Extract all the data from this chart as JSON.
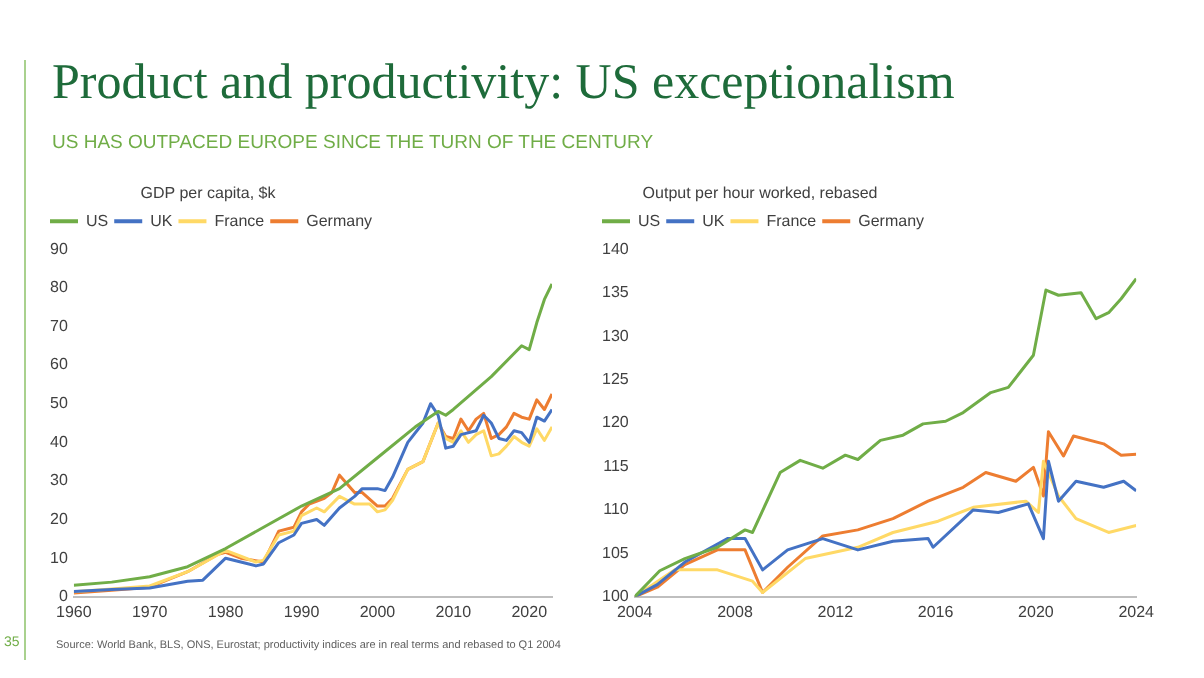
{
  "chart_data": [
    {
      "type": "line",
      "title": "Product and productivity: US exceptionalism",
      "subtitle": "US HAS OUTPACED EUROPE SINCE THE TURN OF THE CENTURY",
      "legend_title": "GDP per capita, $k",
      "legend": "top left",
      "grid": false,
      "marker": "none",
      "xlim": [
        1960,
        2023
      ],
      "xticks": [
        1960,
        1970,
        1980,
        1990,
        2000,
        2010,
        2020
      ],
      "ylim": [
        0,
        90
      ],
      "yticks": [
        0,
        10,
        20,
        30,
        40,
        50,
        60,
        70,
        80,
        90
      ],
      "annotations": [
        "Source: World Bank, BLS, ONS, Eurostat; productivity indices are in real terms and rebased to Q1 2004",
        "35"
      ],
      "series": [
        {
          "name": "US",
          "color": "#70ad47",
          "x": [
            1960,
            1965,
            1970,
            1975,
            1980,
            1985,
            1990,
            1995,
            2000,
            2005,
            2008,
            2009,
            2010,
            2015,
            2018,
            2019,
            2020,
            2021,
            2022,
            2023
          ],
          "values": [
            3,
            3.8,
            5.2,
            7.8,
            12.5,
            18,
            23.5,
            28,
            36,
            44,
            48,
            47,
            48.5,
            57,
            63,
            65,
            64,
            71,
            77,
            81
          ]
        },
        {
          "name": "UK",
          "color": "#4472c4",
          "x": [
            1960,
            1965,
            1970,
            1975,
            1977,
            1980,
            1982,
            1984,
            1985,
            1987,
            1989,
            1990,
            1992,
            1993,
            1995,
            1997,
            1998,
            2000,
            2001,
            2002,
            2004,
            2006,
            2007,
            2008,
            2009,
            2010,
            2011,
            2013,
            2014,
            2015,
            2016,
            2017,
            2018,
            2019,
            2020,
            2021,
            2022,
            2023
          ],
          "values": [
            1.4,
            1.9,
            2.3,
            4,
            4.3,
            10,
            9,
            8,
            8.5,
            14,
            16,
            19,
            20,
            18.5,
            23,
            26,
            28,
            28,
            27.5,
            31,
            40,
            45,
            50,
            47,
            38.5,
            39,
            42,
            43,
            47,
            45,
            41,
            40.5,
            43,
            42.5,
            40,
            46.5,
            45.5,
            48.5
          ]
        },
        {
          "name": "France",
          "color": "#ffd966",
          "x": [
            1960,
            1965,
            1970,
            1975,
            1980,
            1982,
            1984,
            1985,
            1987,
            1989,
            1990,
            1992,
            1993,
            1995,
            1997,
            1999,
            2000,
            2001,
            2002,
            2004,
            2006,
            2008,
            2009,
            2010,
            2011,
            2012,
            2013,
            2014,
            2015,
            2016,
            2017,
            2018,
            2019,
            2020,
            2021,
            2022,
            2023
          ],
          "values": [
            1.3,
            2,
            2.8,
            6.5,
            12,
            10.5,
            9,
            9.5,
            16,
            17,
            21,
            23,
            22,
            26,
            24,
            24,
            22,
            22.5,
            25,
            33,
            35,
            45,
            41,
            40,
            43,
            40,
            42,
            43,
            36.5,
            37,
            39,
            41.5,
            40,
            39,
            43.5,
            40.5,
            44
          ]
        },
        {
          "name": "Germany",
          "color": "#ed7d31",
          "x": [
            1960,
            1965,
            1970,
            1975,
            1979,
            1980,
            1982,
            1985,
            1987,
            1989,
            1990,
            1991,
            1993,
            1994,
            1995,
            1997,
            1998,
            2000,
            2001,
            2002,
            2004,
            2006,
            2008,
            2009,
            2010,
            2011,
            2012,
            2013,
            2014,
            2015,
            2016,
            2017,
            2018,
            2019,
            2020,
            2021,
            2022,
            2023
          ],
          "values": [
            1,
            1.7,
            2.5,
            6.5,
            11,
            11.5,
            10,
            9,
            17,
            18,
            22,
            24,
            25.5,
            27,
            31.5,
            27,
            27,
            23.5,
            23.5,
            25.5,
            33,
            35,
            45,
            41.5,
            41,
            46,
            43,
            46,
            47.5,
            41,
            42,
            44,
            47.5,
            46.5,
            46,
            51,
            48.5,
            52.5
          ]
        }
      ]
    },
    {
      "type": "line",
      "legend_title": "Output per hour worked, rebased",
      "legend": "top left",
      "grid": false,
      "marker": "none",
      "xlim": [
        2004,
        2024
      ],
      "xticks": [
        2004,
        2008,
        2012,
        2016,
        2020,
        2024
      ],
      "ylim": [
        100,
        140
      ],
      "yticks": [
        100,
        105,
        110,
        115,
        120,
        125,
        130,
        135,
        140
      ],
      "series": [
        {
          "name": "US",
          "color": "#70ad47",
          "x": [
            2004,
            2005,
            2006,
            2007.3,
            2008.4,
            2008.7,
            2009.8,
            2010.6,
            2011.5,
            2012.4,
            2012.9,
            2013.8,
            2014.7,
            2015.5,
            2016.4,
            2017.1,
            2018.2,
            2018.9,
            2019.9,
            2020.4,
            2020.9,
            2021.8,
            2022.4,
            2022.9,
            2023.4,
            2024
          ],
          "values": [
            100,
            103,
            104.4,
            105.7,
            107.7,
            107.4,
            114.3,
            115.7,
            114.8,
            116.3,
            115.8,
            118,
            118.6,
            119.9,
            120.2,
            121.2,
            123.5,
            124.1,
            127.8,
            135.3,
            134.7,
            135,
            132,
            132.7,
            134.3,
            136.6
          ]
        },
        {
          "name": "UK",
          "color": "#4472c4",
          "x": [
            2004,
            2004.9,
            2006,
            2007.7,
            2008.4,
            2009.1,
            2010.1,
            2011.5,
            2012.9,
            2014.3,
            2015.7,
            2015.9,
            2017.5,
            2018.5,
            2019.7,
            2020.3,
            2020.5,
            2020.9,
            2021.6,
            2022.7,
            2023.5,
            2024
          ],
          "values": [
            100,
            101.4,
            104,
            106.7,
            106.7,
            103.1,
            105.4,
            106.7,
            105.4,
            106.4,
            106.7,
            105.7,
            110,
            109.7,
            110.7,
            106.7,
            115.6,
            111,
            113.3,
            112.6,
            113.3,
            112.2
          ]
        },
        {
          "name": "France",
          "color": "#ffd966",
          "x": [
            2004,
            2005.6,
            2007.3,
            2008.7,
            2009.1,
            2010.8,
            2012.9,
            2014.3,
            2016.1,
            2017.5,
            2019.6,
            2020.1,
            2020.3,
            2020.9,
            2021.6,
            2022.9,
            2024
          ],
          "values": [
            100,
            103.1,
            103.1,
            101.8,
            100.5,
            104.4,
            105.7,
            107.4,
            108.7,
            110.3,
            111,
            109.7,
            115.6,
            111.6,
            109,
            107.4,
            108.2
          ]
        },
        {
          "name": "Germany",
          "color": "#ed7d31",
          "x": [
            2004,
            2004.9,
            2006,
            2007.3,
            2008.4,
            2009.1,
            2010.1,
            2011.5,
            2012.9,
            2014.3,
            2015.7,
            2017.1,
            2018,
            2019.2,
            2019.9,
            2020.3,
            2020.5,
            2021.1,
            2021.5,
            2022.7,
            2023.4,
            2024
          ],
          "values": [
            100,
            101.1,
            103.7,
            105.4,
            105.4,
            100.5,
            103.4,
            107,
            107.7,
            109,
            111,
            112.6,
            114.3,
            113.3,
            114.9,
            111.6,
            119,
            116.2,
            118.5,
            117.6,
            116.3,
            116.4
          ]
        }
      ]
    }
  ]
}
